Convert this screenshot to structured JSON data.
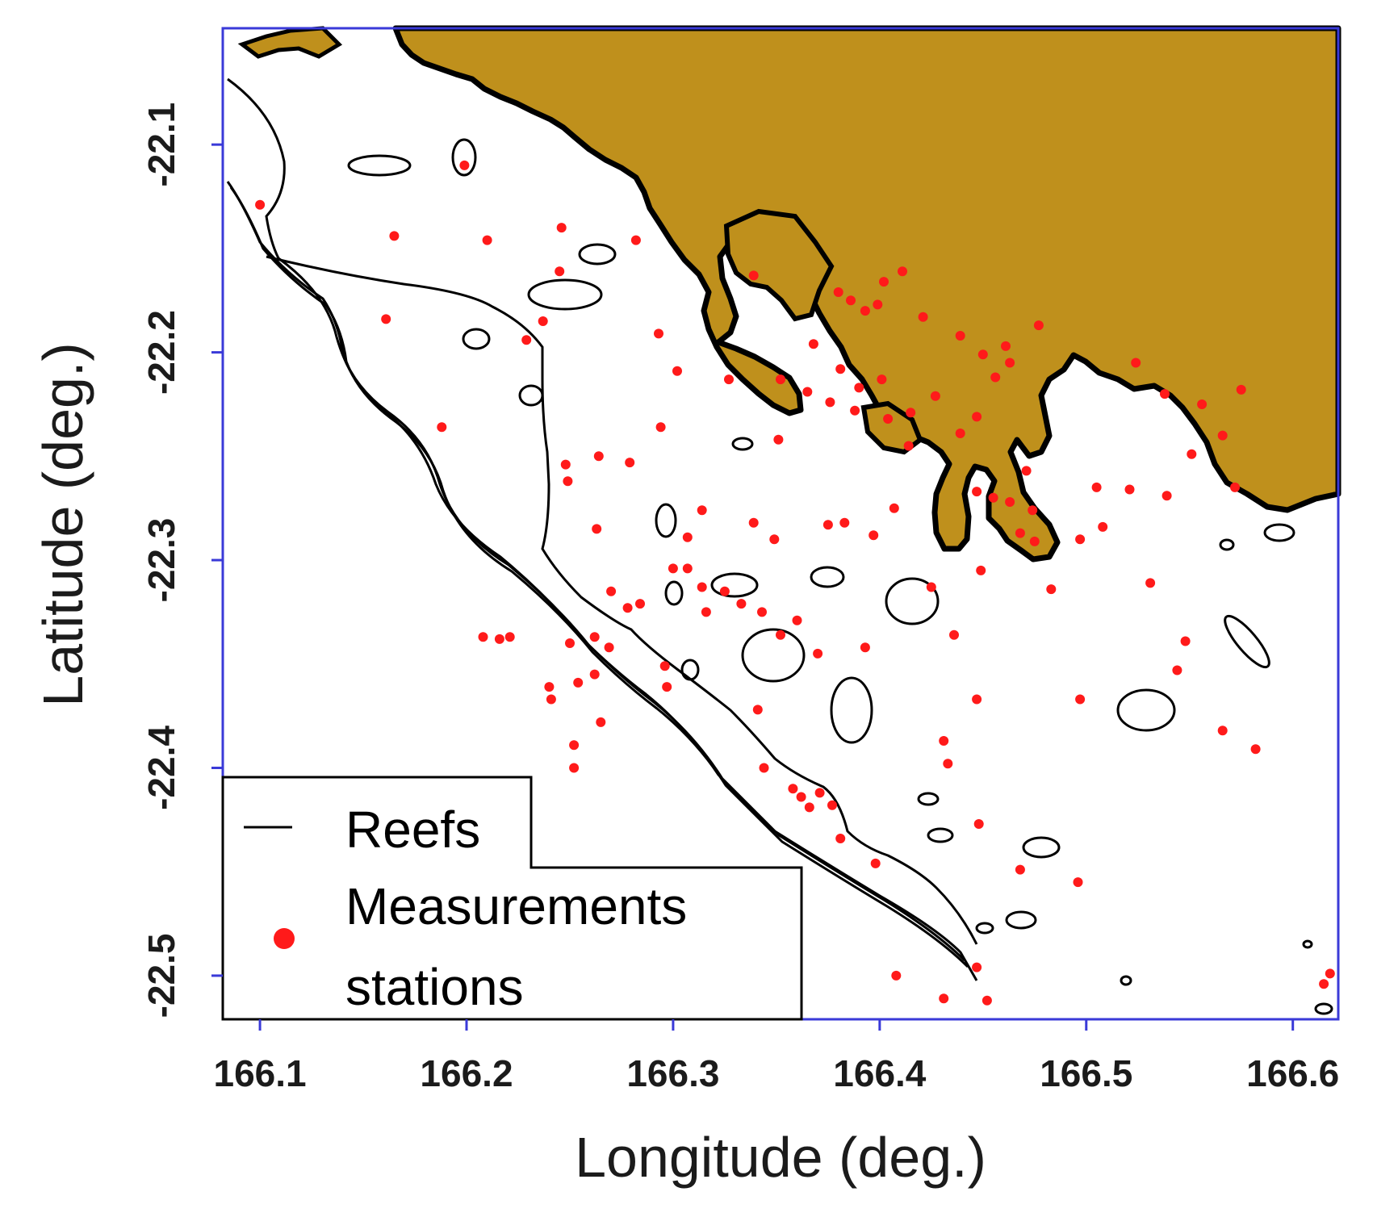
{
  "map": {
    "xaxis": {
      "label": "Longitude (deg.)",
      "range": [
        166.082,
        166.622
      ],
      "ticks": [
        "166.1",
        "166.2",
        "166.3",
        "166.4",
        "166.5",
        "166.6"
      ],
      "tick_values": [
        166.1,
        166.2,
        166.3,
        166.4,
        166.5,
        166.6
      ]
    },
    "yaxis": {
      "label": "Latitude (deg.)",
      "range": [
        -22.521,
        -22.044
      ],
      "ticks": [
        "-22.1",
        "-22.2",
        "-22.3",
        "-22.4",
        "-22.5"
      ],
      "tick_values": [
        -22.1,
        -22.2,
        -22.3,
        -22.4,
        -22.5
      ]
    },
    "colors": {
      "land": "#bf901c",
      "frame": "#3a3ad8",
      "reef": "#000000",
      "station": "#ff1a1a",
      "sea": "#ffffff"
    },
    "legend": {
      "position": "bottom-left",
      "reefs_label": "Reefs",
      "stations_label_line1": "Measurements",
      "stations_label_line2": "stations"
    },
    "stations": [
      [
        166.199,
        -22.11
      ],
      [
        166.1,
        -22.129
      ],
      [
        166.165,
        -22.144
      ],
      [
        166.21,
        -22.146
      ],
      [
        166.246,
        -22.14
      ],
      [
        166.282,
        -22.146
      ],
      [
        166.245,
        -22.161
      ],
      [
        166.237,
        -22.185
      ],
      [
        166.229,
        -22.194
      ],
      [
        166.161,
        -22.184
      ],
      [
        166.293,
        -22.191
      ],
      [
        166.302,
        -22.209
      ],
      [
        166.327,
        -22.213
      ],
      [
        166.294,
        -22.236
      ],
      [
        166.188,
        -22.236
      ],
      [
        166.264,
        -22.25
      ],
      [
        166.248,
        -22.254
      ],
      [
        166.249,
        -22.262
      ],
      [
        166.279,
        -22.253
      ],
      [
        166.351,
        -22.242
      ],
      [
        166.314,
        -22.276
      ],
      [
        166.263,
        -22.285
      ],
      [
        166.339,
        -22.282
      ],
      [
        166.349,
        -22.29
      ],
      [
        166.307,
        -22.289
      ],
      [
        166.375,
        -22.283
      ],
      [
        166.383,
        -22.282
      ],
      [
        166.397,
        -22.288
      ],
      [
        166.407,
        -22.275
      ],
      [
        166.3,
        -22.304
      ],
      [
        166.307,
        -22.304
      ],
      [
        166.314,
        -22.313
      ],
      [
        166.325,
        -22.315
      ],
      [
        166.333,
        -22.321
      ],
      [
        166.343,
        -22.325
      ],
      [
        166.36,
        -22.329
      ],
      [
        166.284,
        -22.321
      ],
      [
        166.27,
        -22.315
      ],
      [
        166.278,
        -22.323
      ],
      [
        166.316,
        -22.325
      ],
      [
        166.208,
        -22.337
      ],
      [
        166.216,
        -22.338
      ],
      [
        166.221,
        -22.337
      ],
      [
        166.25,
        -22.34
      ],
      [
        166.262,
        -22.337
      ],
      [
        166.269,
        -22.342
      ],
      [
        166.352,
        -22.336
      ],
      [
        166.37,
        -22.345
      ],
      [
        166.393,
        -22.342
      ],
      [
        166.262,
        -22.355
      ],
      [
        166.296,
        -22.351
      ],
      [
        166.297,
        -22.361
      ],
      [
        166.254,
        -22.359
      ],
      [
        166.24,
        -22.361
      ],
      [
        166.241,
        -22.367
      ],
      [
        166.341,
        -22.372
      ],
      [
        166.265,
        -22.378
      ],
      [
        166.252,
        -22.389
      ],
      [
        166.252,
        -22.4
      ],
      [
        166.344,
        -22.4
      ],
      [
        166.358,
        -22.41
      ],
      [
        166.362,
        -22.414
      ],
      [
        166.371,
        -22.412
      ],
      [
        166.377,
        -22.418
      ],
      [
        166.366,
        -22.419
      ],
      [
        166.431,
        -22.387
      ],
      [
        166.433,
        -22.398
      ],
      [
        166.447,
        -22.367
      ],
      [
        166.448,
        -22.427
      ],
      [
        166.381,
        -22.434
      ],
      [
        166.398,
        -22.446
      ],
      [
        166.468,
        -22.449
      ],
      [
        166.496,
        -22.455
      ],
      [
        166.408,
        -22.5
      ],
      [
        166.431,
        -22.511
      ],
      [
        166.447,
        -22.496
      ],
      [
        166.452,
        -22.512
      ],
      [
        166.618,
        -22.499
      ],
      [
        166.615,
        -22.504
      ],
      [
        166.436,
        -22.336
      ],
      [
        166.425,
        -22.313
      ],
      [
        166.449,
        -22.305
      ],
      [
        166.483,
        -22.314
      ],
      [
        166.508,
        -22.284
      ],
      [
        166.521,
        -22.266
      ],
      [
        166.531,
        -22.311
      ],
      [
        166.551,
        -22.249
      ],
      [
        166.539,
        -22.269
      ],
      [
        166.548,
        -22.339
      ],
      [
        166.544,
        -22.353
      ],
      [
        166.582,
        -22.391
      ],
      [
        166.497,
        -22.367
      ],
      [
        166.566,
        -22.382
      ],
      [
        166.572,
        -22.265
      ],
      [
        166.524,
        -22.205
      ],
      [
        166.447,
        -22.267
      ],
      [
        166.455,
        -22.27
      ],
      [
        166.463,
        -22.272
      ],
      [
        166.468,
        -22.287
      ],
      [
        166.475,
        -22.291
      ],
      [
        166.474,
        -22.276
      ],
      [
        166.471,
        -22.257
      ],
      [
        166.497,
        -22.29
      ],
      [
        166.505,
        -22.265
      ],
      [
        166.538,
        -22.22
      ],
      [
        166.556,
        -22.225
      ],
      [
        166.566,
        -22.24
      ],
      [
        166.575,
        -22.218
      ],
      [
        166.339,
        -22.163
      ],
      [
        166.38,
        -22.171
      ],
      [
        166.386,
        -22.175
      ],
      [
        166.393,
        -22.18
      ],
      [
        166.399,
        -22.177
      ],
      [
        166.402,
        -22.166
      ],
      [
        166.411,
        -22.161
      ],
      [
        166.421,
        -22.183
      ],
      [
        166.439,
        -22.192
      ],
      [
        166.45,
        -22.201
      ],
      [
        166.461,
        -22.197
      ],
      [
        166.477,
        -22.187
      ],
      [
        166.463,
        -22.205
      ],
      [
        166.456,
        -22.212
      ],
      [
        166.368,
        -22.196
      ],
      [
        166.381,
        -22.208
      ],
      [
        166.39,
        -22.217
      ],
      [
        166.401,
        -22.213
      ],
      [
        166.388,
        -22.228
      ],
      [
        166.376,
        -22.224
      ],
      [
        166.365,
        -22.219
      ],
      [
        166.352,
        -22.213
      ],
      [
        166.404,
        -22.232
      ],
      [
        166.415,
        -22.229
      ],
      [
        166.427,
        -22.221
      ],
      [
        166.439,
        -22.239
      ],
      [
        166.447,
        -22.231
      ],
      [
        166.414,
        -22.245
      ]
    ]
  }
}
